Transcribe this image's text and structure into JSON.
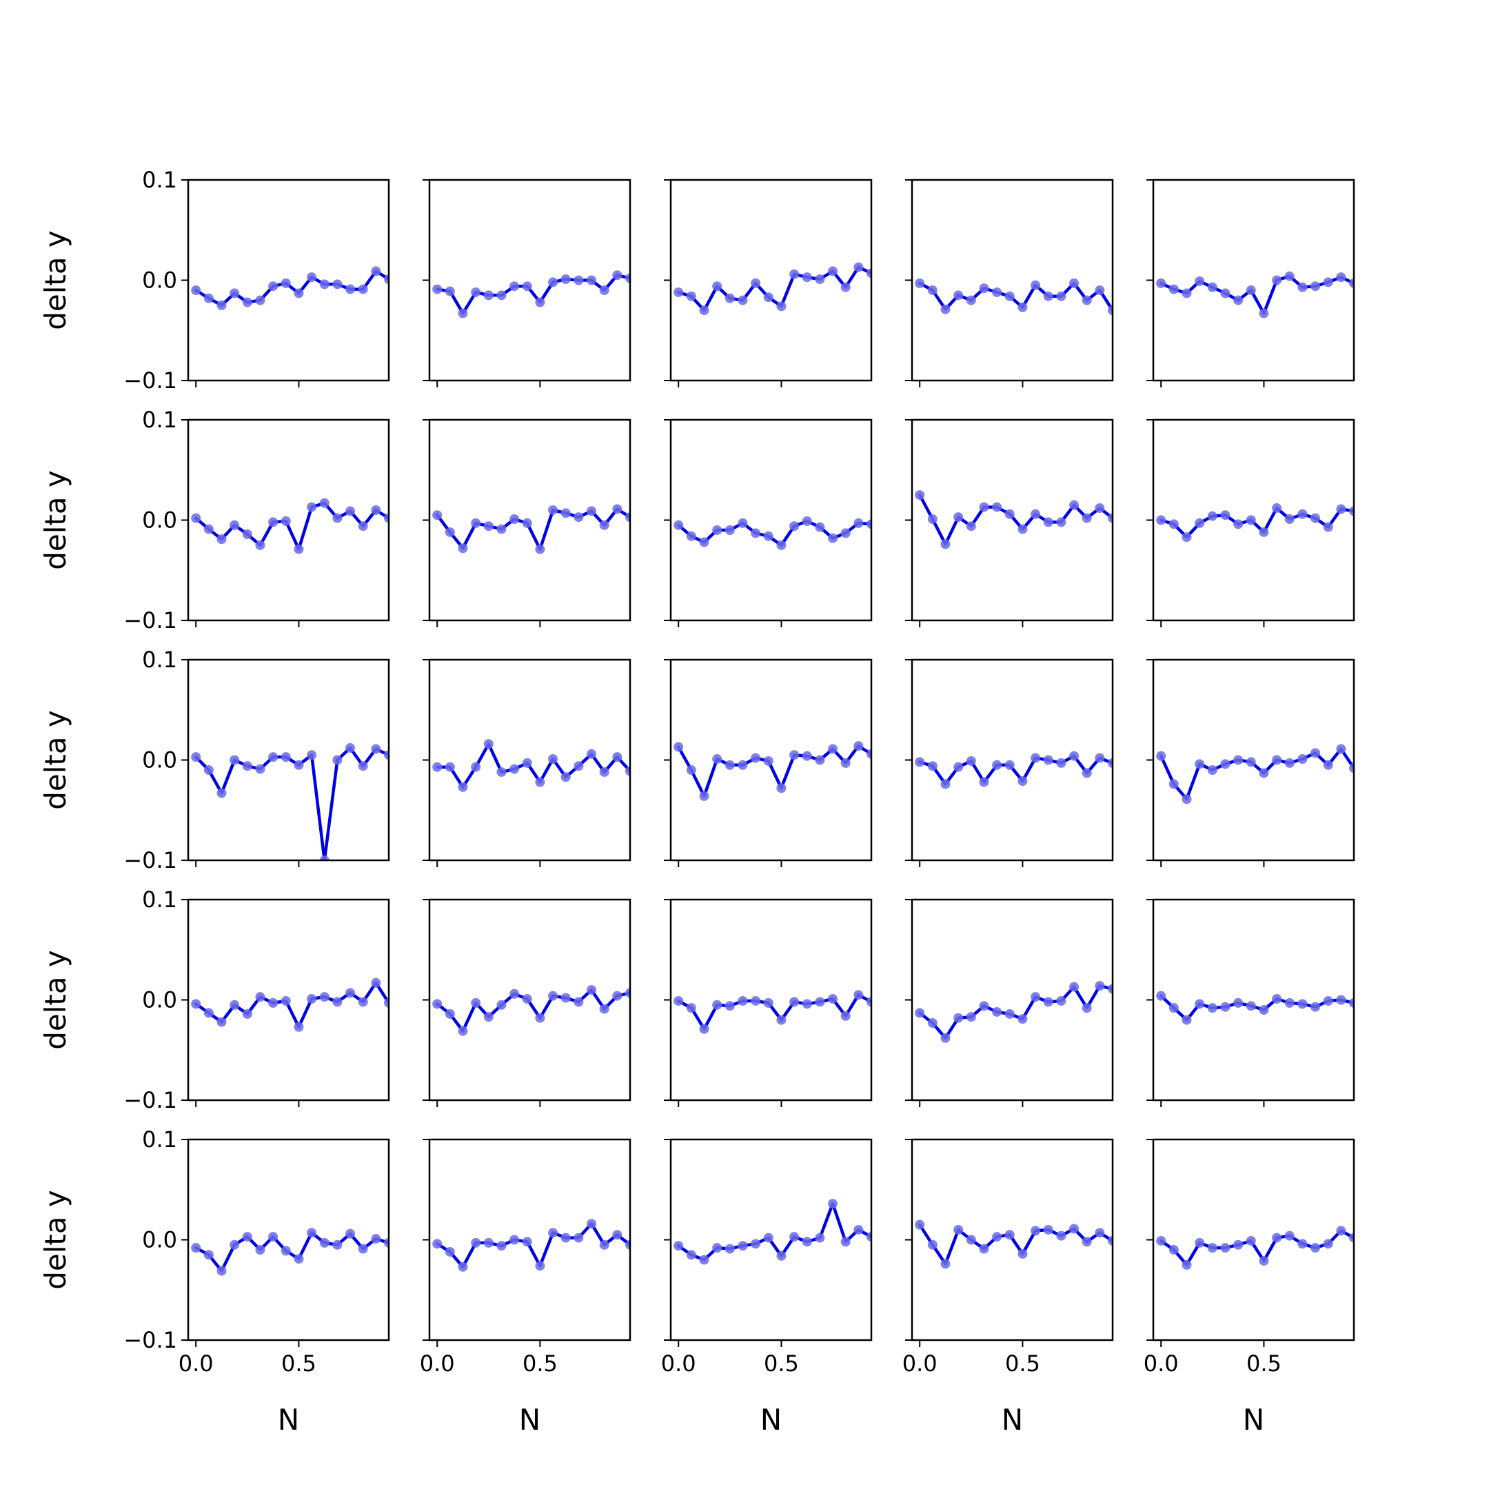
{
  "chart_data": {
    "type": "line",
    "layout": {
      "rows": 5,
      "cols": 5
    },
    "xlabel": "N",
    "ylabel": "delta y",
    "ylim": [
      -0.1,
      0.1
    ],
    "xlim": [
      -0.0375,
      0.9375
    ],
    "yticks": [
      -0.1,
      0.0,
      0.1
    ],
    "ytick_labels": [
      "−0.1",
      "0.0",
      "0.1"
    ],
    "xticks": [
      0.0,
      0.5
    ],
    "xtick_labels": [
      "0.0",
      "0.5"
    ],
    "grid": false,
    "line_color": "#0000e6",
    "marker_color": "#6a6ae8",
    "x": [
      0.0,
      0.0625,
      0.125,
      0.1875,
      0.25,
      0.3125,
      0.375,
      0.4375,
      0.5,
      0.5625,
      0.625,
      0.6875,
      0.75,
      0.8125,
      0.875,
      0.9375
    ],
    "panels": [
      {
        "row": 0,
        "col": 0,
        "values": [
          -0.01,
          -0.018,
          -0.025,
          -0.013,
          -0.022,
          -0.02,
          -0.006,
          -0.003,
          -0.013,
          0.003,
          -0.004,
          -0.004,
          -0.009,
          -0.009,
          0.009,
          0.001
        ]
      },
      {
        "row": 0,
        "col": 1,
        "values": [
          -0.009,
          -0.011,
          -0.033,
          -0.012,
          -0.015,
          -0.015,
          -0.006,
          -0.006,
          -0.022,
          -0.002,
          0.001,
          0.0,
          0.0,
          -0.01,
          0.005,
          0.002
        ]
      },
      {
        "row": 0,
        "col": 2,
        "values": [
          -0.012,
          -0.016,
          -0.03,
          -0.006,
          -0.018,
          -0.02,
          -0.003,
          -0.017,
          -0.026,
          0.006,
          0.003,
          0.001,
          0.009,
          -0.007,
          0.013,
          0.007
        ]
      },
      {
        "row": 0,
        "col": 3,
        "values": [
          -0.003,
          -0.01,
          -0.029,
          -0.015,
          -0.02,
          -0.008,
          -0.012,
          -0.016,
          -0.027,
          -0.005,
          -0.016,
          -0.016,
          -0.003,
          -0.02,
          -0.01,
          -0.03
        ]
      },
      {
        "row": 0,
        "col": 4,
        "values": [
          -0.003,
          -0.009,
          -0.013,
          -0.001,
          -0.007,
          -0.013,
          -0.02,
          -0.01,
          -0.033,
          0.0,
          0.004,
          -0.007,
          -0.006,
          -0.002,
          0.003,
          -0.003
        ]
      },
      {
        "row": 1,
        "col": 0,
        "values": [
          0.002,
          -0.009,
          -0.019,
          -0.005,
          -0.014,
          -0.025,
          -0.002,
          -0.001,
          -0.029,
          0.013,
          0.017,
          0.002,
          0.009,
          -0.006,
          0.01,
          0.002
        ]
      },
      {
        "row": 1,
        "col": 1,
        "values": [
          0.005,
          -0.012,
          -0.028,
          -0.003,
          -0.006,
          -0.009,
          0.001,
          -0.003,
          -0.029,
          0.01,
          0.007,
          0.003,
          0.009,
          -0.005,
          0.011,
          0.003
        ]
      },
      {
        "row": 1,
        "col": 2,
        "values": [
          -0.005,
          -0.016,
          -0.022,
          -0.01,
          -0.01,
          -0.003,
          -0.013,
          -0.016,
          -0.025,
          -0.006,
          -0.001,
          -0.007,
          -0.018,
          -0.013,
          -0.003,
          -0.004
        ]
      },
      {
        "row": 1,
        "col": 3,
        "values": [
          0.025,
          0.001,
          -0.024,
          0.003,
          -0.006,
          0.013,
          0.013,
          0.006,
          -0.009,
          0.006,
          -0.002,
          -0.002,
          0.015,
          0.002,
          0.012,
          0.002
        ]
      },
      {
        "row": 1,
        "col": 4,
        "values": [
          0.0,
          -0.004,
          -0.017,
          -0.003,
          0.004,
          0.005,
          -0.004,
          0.0,
          -0.012,
          0.012,
          0.001,
          0.006,
          0.002,
          -0.007,
          0.011,
          0.009
        ]
      },
      {
        "row": 2,
        "col": 0,
        "values": [
          0.003,
          -0.01,
          -0.033,
          0.0,
          -0.006,
          -0.009,
          0.003,
          0.003,
          -0.005,
          0.005,
          -0.1,
          0.0,
          0.012,
          -0.006,
          0.011,
          0.005
        ]
      },
      {
        "row": 2,
        "col": 1,
        "values": [
          -0.007,
          -0.007,
          -0.027,
          -0.007,
          0.016,
          -0.012,
          -0.009,
          -0.003,
          -0.022,
          0.001,
          -0.017,
          -0.006,
          0.006,
          -0.012,
          0.003,
          -0.011
        ]
      },
      {
        "row": 2,
        "col": 2,
        "values": [
          0.013,
          -0.01,
          -0.036,
          0.001,
          -0.005,
          -0.005,
          0.002,
          -0.001,
          -0.028,
          0.005,
          0.004,
          0.0,
          0.011,
          -0.003,
          0.014,
          0.006
        ]
      },
      {
        "row": 2,
        "col": 3,
        "values": [
          -0.002,
          -0.006,
          -0.024,
          -0.007,
          -0.001,
          -0.022,
          -0.005,
          -0.005,
          -0.021,
          0.002,
          0.0,
          -0.003,
          0.004,
          -0.013,
          0.002,
          -0.003
        ]
      },
      {
        "row": 2,
        "col": 4,
        "values": [
          0.004,
          -0.024,
          -0.039,
          -0.004,
          -0.01,
          -0.004,
          0.0,
          -0.002,
          -0.013,
          0.0,
          -0.003,
          0.001,
          0.007,
          -0.005,
          0.011,
          -0.008
        ]
      },
      {
        "row": 3,
        "col": 0,
        "values": [
          -0.004,
          -0.013,
          -0.022,
          -0.005,
          -0.014,
          0.003,
          -0.003,
          -0.001,
          -0.027,
          0.001,
          0.003,
          -0.002,
          0.007,
          -0.002,
          0.017,
          -0.003
        ]
      },
      {
        "row": 3,
        "col": 1,
        "values": [
          -0.004,
          -0.014,
          -0.031,
          -0.003,
          -0.017,
          -0.005,
          0.006,
          0.001,
          -0.018,
          0.004,
          0.002,
          -0.002,
          0.01,
          -0.009,
          0.004,
          0.007
        ]
      },
      {
        "row": 3,
        "col": 2,
        "values": [
          -0.001,
          -0.008,
          -0.029,
          -0.005,
          -0.006,
          -0.001,
          -0.001,
          -0.003,
          -0.02,
          -0.002,
          -0.004,
          -0.002,
          0.001,
          -0.016,
          0.005,
          -0.002
        ]
      },
      {
        "row": 3,
        "col": 3,
        "values": [
          -0.013,
          -0.023,
          -0.038,
          -0.018,
          -0.017,
          -0.006,
          -0.012,
          -0.014,
          -0.019,
          0.003,
          -0.002,
          -0.001,
          0.013,
          -0.008,
          0.014,
          0.011
        ]
      },
      {
        "row": 3,
        "col": 4,
        "values": [
          0.004,
          -0.008,
          -0.02,
          -0.004,
          -0.008,
          -0.007,
          -0.003,
          -0.006,
          -0.01,
          0.001,
          -0.003,
          -0.004,
          -0.007,
          -0.001,
          0.0,
          -0.003
        ]
      },
      {
        "row": 4,
        "col": 0,
        "values": [
          -0.008,
          -0.015,
          -0.031,
          -0.005,
          0.003,
          -0.01,
          0.003,
          -0.011,
          -0.019,
          0.007,
          -0.003,
          -0.005,
          0.006,
          -0.009,
          0.001,
          -0.003
        ]
      },
      {
        "row": 4,
        "col": 1,
        "values": [
          -0.004,
          -0.012,
          -0.027,
          -0.003,
          -0.003,
          -0.006,
          0.0,
          -0.002,
          -0.026,
          0.007,
          0.002,
          0.002,
          0.016,
          -0.005,
          0.005,
          -0.005
        ]
      },
      {
        "row": 4,
        "col": 2,
        "values": [
          -0.006,
          -0.015,
          -0.02,
          -0.008,
          -0.009,
          -0.006,
          -0.004,
          0.002,
          -0.016,
          0.003,
          -0.002,
          0.002,
          0.036,
          -0.002,
          0.01,
          0.003
        ]
      },
      {
        "row": 4,
        "col": 3,
        "values": [
          0.015,
          -0.005,
          -0.024,
          0.01,
          0.0,
          -0.009,
          0.003,
          0.005,
          -0.014,
          0.009,
          0.01,
          0.004,
          0.011,
          -0.002,
          0.007,
          -0.001
        ]
      },
      {
        "row": 4,
        "col": 4,
        "values": [
          -0.001,
          -0.01,
          -0.025,
          -0.003,
          -0.008,
          -0.008,
          -0.005,
          -0.001,
          -0.021,
          0.002,
          0.004,
          -0.004,
          -0.008,
          -0.004,
          0.009,
          0.002
        ]
      }
    ]
  }
}
